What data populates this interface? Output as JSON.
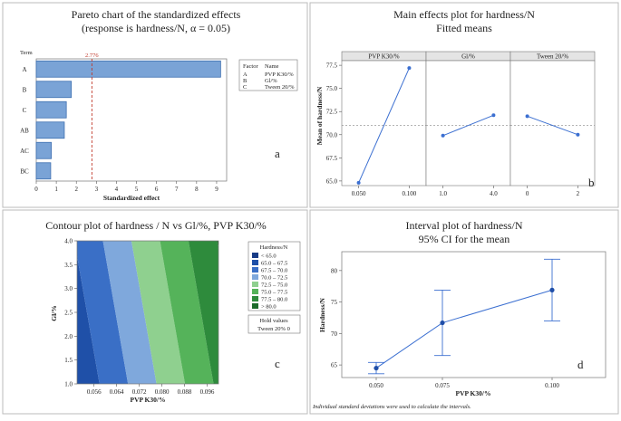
{
  "colors": {
    "bar_fill": "#7aa3d6",
    "bar_stroke": "#3e6fb0",
    "ref_line": "#c0392b",
    "line": "#3b6fd1",
    "panel_border": "#bbbbbb",
    "grid_bg": "#ffffff"
  },
  "chart_data": [
    {
      "id": "pareto",
      "type": "bar",
      "orientation": "horizontal",
      "title": "Pareto chart of the standardized effects",
      "subtitle": "(response is hardness/N, α = 0.05)",
      "term_header": "Term",
      "categories": [
        "A",
        "B",
        "C",
        "AB",
        "AC",
        "BC"
      ],
      "values": [
        9.2,
        1.75,
        1.5,
        1.4,
        0.75,
        0.72
      ],
      "reference": {
        "value": 2.776,
        "label": "2.776"
      },
      "xlabel": "Standardized effect",
      "xlim": [
        0,
        9.5
      ],
      "xticks": [
        "0",
        "1",
        "2",
        "3",
        "4",
        "5",
        "6",
        "7",
        "8",
        "9"
      ],
      "legend": {
        "header_factor": "Factor",
        "header_name": "Name",
        "rows": [
          {
            "factor": "A",
            "name": "PVP K30/%"
          },
          {
            "factor": "B",
            "name": "Gl/%"
          },
          {
            "factor": "C",
            "name": "Tween 20/%"
          }
        ]
      },
      "panel_label": "a"
    },
    {
      "id": "main_effects",
      "type": "line",
      "title": "Main effects plot for hardness/N",
      "subtitle": "Fitted means",
      "ylabel": "Mean of hardness/N",
      "ylim": [
        64.5,
        78
      ],
      "yticks": [
        "77.5",
        "75.0",
        "72.5",
        "70.0",
        "67.5",
        "65.0"
      ],
      "mean_line": 71.0,
      "series": [
        {
          "name": "PVP K30/%",
          "x": [
            "0.050",
            "0.100"
          ],
          "values": [
            64.8,
            77.2
          ]
        },
        {
          "name": "Gl/%",
          "x": [
            "1.0",
            "4.0"
          ],
          "values": [
            69.9,
            72.1
          ]
        },
        {
          "name": "Tween 20/%",
          "x": [
            "0",
            "2"
          ],
          "values": [
            72.0,
            70.0
          ]
        }
      ],
      "panel_label": "b"
    },
    {
      "id": "contour",
      "type": "heatmap",
      "title": "Contour plot of hardness / N vs Gl/%, PVP K30/%",
      "xlabel": "PVP K30/%",
      "ylabel": "Gl/%",
      "xlim": [
        0.05,
        0.1
      ],
      "ylim": [
        1.0,
        4.0
      ],
      "xticks": [
        "0.056",
        "0.064",
        "0.072",
        "0.080",
        "0.088",
        "0.096"
      ],
      "yticks": [
        "4.0",
        "3.5",
        "3.0",
        "2.5",
        "2.0",
        "1.5",
        "1.0"
      ],
      "legend_title": "Hardness/N",
      "levels": [
        {
          "label": "<  65.0",
          "color": "#173b86"
        },
        {
          "label": "65.0 –  67.5",
          "color": "#1f50a8"
        },
        {
          "label": "67.5 –  70.0",
          "color": "#3a6fc6"
        },
        {
          "label": "70.0 –  72.5",
          "color": "#7fa8dc"
        },
        {
          "label": "72.5 –  75.0",
          "color": "#8fd08f"
        },
        {
          "label": "75.0 –  77.5",
          "color": "#55b35a"
        },
        {
          "label": "77.5 –  80.0",
          "color": "#2e8b3c"
        },
        {
          "label": ">  80.0",
          "color": "#1b6b2a"
        }
      ],
      "hold_title": "Hold values",
      "hold_value": "Tween 20%  0",
      "panel_label": "c"
    },
    {
      "id": "interval",
      "type": "line",
      "title": "Interval plot of hardness/N",
      "subtitle": "95% CI for the mean",
      "xlabel": "PVP K30/%",
      "ylabel": "Hardness/N",
      "ylim": [
        63,
        83
      ],
      "yticks": [
        "80",
        "75",
        "70",
        "65"
      ],
      "categories": [
        "0.050",
        "0.075",
        "0.100"
      ],
      "means": [
        64.5,
        71.7,
        76.9
      ],
      "lower": [
        63.6,
        66.5,
        72.0
      ],
      "upper": [
        65.4,
        76.9,
        81.8
      ],
      "footnote": "Individual standard deviations were used to calculate the intervals.",
      "panel_label": "d"
    }
  ]
}
